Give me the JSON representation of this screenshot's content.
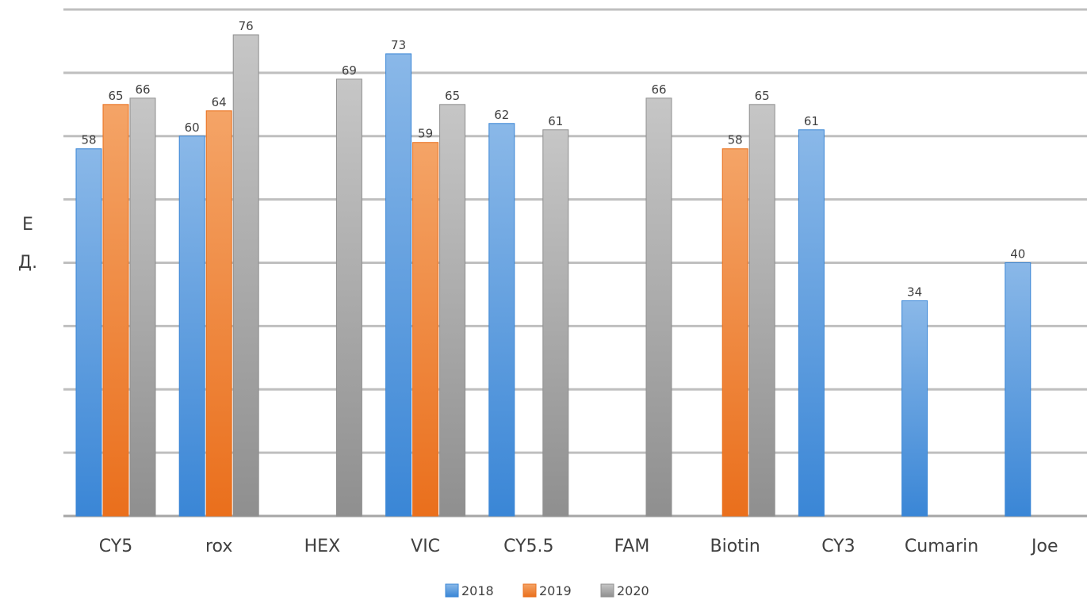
{
  "chart_data": {
    "type": "bar",
    "categories": [
      "CY5",
      "rox",
      "HEX",
      "VIC",
      "CY5.5",
      "FAM",
      "Biotin",
      "CY3",
      "Cumarin",
      "Joe"
    ],
    "series": [
      {
        "name": "2018",
        "color": "#4a90d9",
        "values": [
          58,
          60,
          null,
          73,
          62,
          null,
          null,
          61,
          34,
          40
        ]
      },
      {
        "name": "2019",
        "color": "#ee7d2a",
        "values": [
          65,
          64,
          null,
          59,
          null,
          null,
          58,
          null,
          null,
          null
        ]
      },
      {
        "name": "2020",
        "color": "#a5a5a5",
        "values": [
          66,
          76,
          69,
          65,
          61,
          66,
          65,
          null,
          null,
          null
        ]
      }
    ],
    "ylabel_line1": "Е",
    "ylabel_line2": "Д.",
    "ylim": [
      0,
      80
    ],
    "grid": true,
    "legend": "bottom"
  }
}
